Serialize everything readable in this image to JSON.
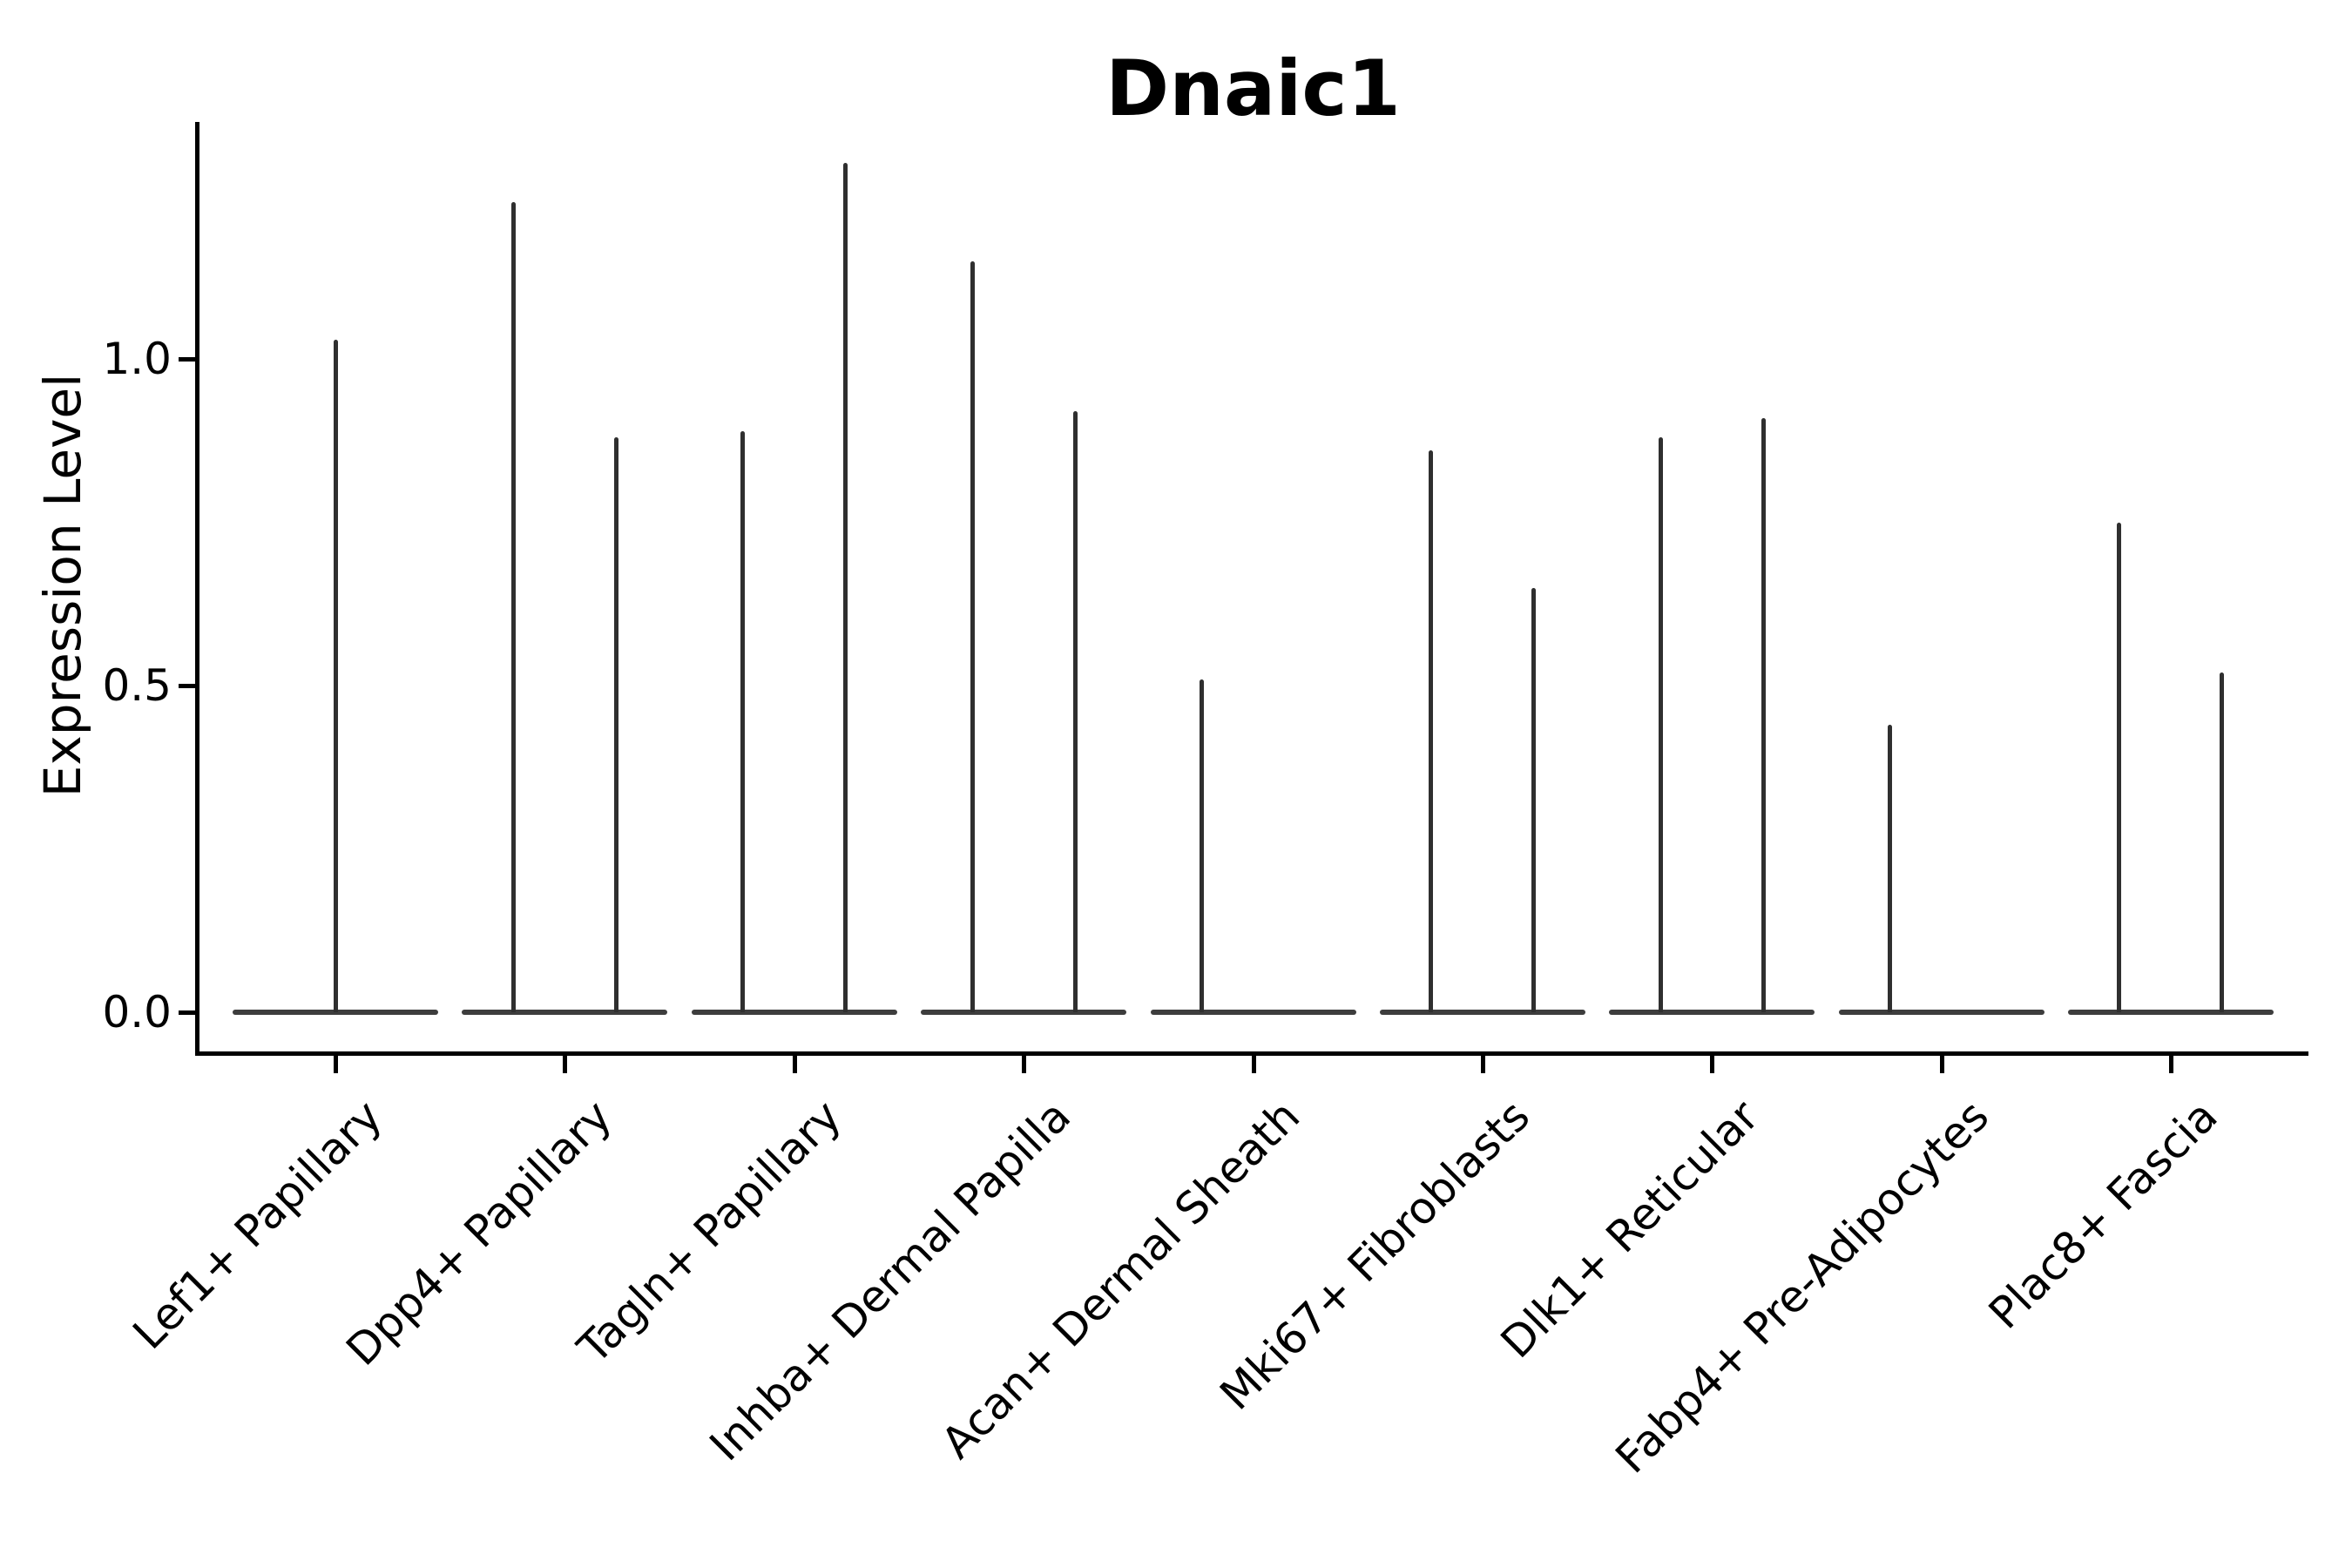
{
  "title": "Dnaic1",
  "colors": {
    "background": "#ffffff",
    "axis": "#000000",
    "violin": "#2f2f2f",
    "violin_base": "#3d3d3d",
    "text": "#000000"
  },
  "chart_data": {
    "type": "violin",
    "title": "Dnaic1",
    "xlabel": "",
    "ylabel": "Expression Level",
    "ylim": [
      0,
      1.36
    ],
    "yticks": [
      0.0,
      0.5,
      1.0
    ],
    "ytick_labels": [
      "0.0",
      "0.5",
      "1.0"
    ],
    "grid": false,
    "legend": "none",
    "categories": [
      "Lef1+ Papillary",
      "Dpp4+ Papillary",
      "Tagln+ Papillary",
      "Inhba+ Dermal Papilla",
      "Acan+ Dermal Sheath",
      "Mki67+ Fibroblasts",
      "Dlk1+ Reticular",
      "Fabp4+ Pre-Adipocytes",
      "Plac8+ Fascia"
    ],
    "note": "Needle-thin violins: each category shows a flat near-zero density bar at 0.0 plus thin spikes reaching the maximum expression value. Most categories contain a pair of violins (left/right); Lef1+ Papillary has a single centered violin; Acan+ Dermal Sheath and Fabp4+ Pre-Adipocytes have only a left spike.",
    "violins": [
      {
        "category": "Lef1+ Papillary",
        "spikes": [
          {
            "pos": "center",
            "max": 1.03
          }
        ]
      },
      {
        "category": "Dpp4+ Papillary",
        "spikes": [
          {
            "pos": "left",
            "max": 1.24
          },
          {
            "pos": "right",
            "max": 0.88
          }
        ]
      },
      {
        "category": "Tagln+ Papillary",
        "spikes": [
          {
            "pos": "left",
            "max": 0.89
          },
          {
            "pos": "right",
            "max": 1.3
          }
        ]
      },
      {
        "category": "Inhba+ Dermal Papilla",
        "spikes": [
          {
            "pos": "left",
            "max": 1.15
          },
          {
            "pos": "right",
            "max": 0.92
          }
        ]
      },
      {
        "category": "Acan+ Dermal Sheath",
        "spikes": [
          {
            "pos": "left",
            "max": 0.51
          }
        ]
      },
      {
        "category": "Mki67+ Fibroblasts",
        "spikes": [
          {
            "pos": "left",
            "max": 0.86
          },
          {
            "pos": "right",
            "max": 0.65
          }
        ]
      },
      {
        "category": "Dlk1+ Reticular",
        "spikes": [
          {
            "pos": "left",
            "max": 0.88
          },
          {
            "pos": "right",
            "max": 0.91
          }
        ]
      },
      {
        "category": "Fabp4+ Pre-Adipocytes",
        "spikes": [
          {
            "pos": "left",
            "max": 0.44
          }
        ]
      },
      {
        "category": "Plac8+ Fascia",
        "spikes": [
          {
            "pos": "left",
            "max": 0.75
          },
          {
            "pos": "right",
            "max": 0.52
          }
        ]
      }
    ],
    "baseline_value": 0.0
  }
}
